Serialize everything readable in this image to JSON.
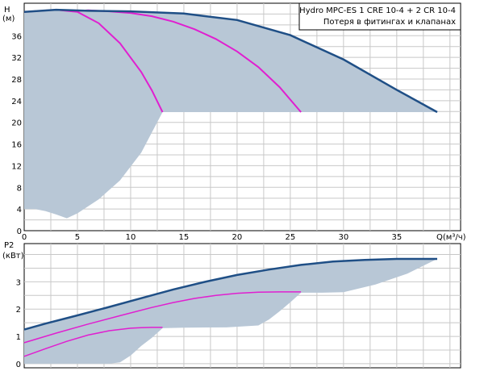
{
  "legend": {
    "title": "Hydro MPC-ES 1 CRE 10-4  +  2 CR 10-4",
    "subtitle": "Потеря в фитингах и клапанах"
  },
  "colors": {
    "band": "#b8c7d6",
    "main_curve": "#1f4f86",
    "sub_curve": "#e01fd0",
    "grid": "#c8c8c8",
    "frame": "#000000"
  },
  "chart_data": [
    {
      "type": "line",
      "name": "head",
      "xlabel": "Q(м³/ч)",
      "ylabel_line1": "H",
      "ylabel_line2": "(м)",
      "xlim": [
        0,
        41
      ],
      "ylim": [
        0,
        42
      ],
      "xticks": [
        0,
        5,
        10,
        15,
        20,
        25,
        30,
        35
      ],
      "yticks": [
        0,
        4,
        8,
        12,
        16,
        20,
        24,
        28,
        32,
        36
      ],
      "grid": true,
      "legend_position": "top-right",
      "series": [
        {
          "role": "max",
          "x": [
            0,
            3,
            6,
            10,
            15,
            20,
            25,
            30,
            35,
            38.8
          ],
          "y": [
            40.4,
            40.8,
            40.6,
            40.5,
            40.1,
            38.9,
            36.1,
            31.6,
            26.0,
            21.9
          ]
        },
        {
          "role": "one_pump",
          "x": [
            0,
            3,
            5,
            7,
            9,
            11,
            12,
            13
          ],
          "y": [
            40.4,
            40.8,
            40.4,
            38.3,
            34.6,
            29.3,
            25.9,
            21.9
          ]
        },
        {
          "role": "two_pumps",
          "x": [
            4.5,
            6,
            8,
            10,
            12,
            14,
            16,
            18,
            20,
            22,
            24,
            26
          ],
          "y": [
            40.5,
            40.7,
            40.5,
            40.2,
            39.6,
            38.6,
            37.2,
            35.4,
            33.1,
            30.2,
            26.5,
            21.9
          ]
        },
        {
          "role": "min_band",
          "x": [
            0,
            1,
            2,
            3,
            4,
            5,
            7,
            9,
            11,
            13
          ],
          "y": [
            4.0,
            4.0,
            3.6,
            3.0,
            2.3,
            3.2,
            5.8,
            9.3,
            14.4,
            21.9
          ]
        }
      ]
    },
    {
      "type": "line",
      "name": "power",
      "ylabel_line1": "P2",
      "ylabel_line2": "(кВт)",
      "xlim": [
        0,
        41
      ],
      "ylim": [
        -0.15,
        4.4
      ],
      "yticks": [
        0,
        1,
        2,
        3
      ],
      "grid": true,
      "series": [
        {
          "role": "max",
          "x": [
            0,
            2,
            5,
            8,
            11,
            14,
            17,
            20,
            23,
            26,
            29,
            32,
            35,
            38.8
          ],
          "y": [
            1.25,
            1.47,
            1.77,
            2.08,
            2.4,
            2.72,
            3.0,
            3.25,
            3.45,
            3.62,
            3.74,
            3.8,
            3.84,
            3.84
          ]
        },
        {
          "role": "two_pumps",
          "x": [
            0,
            3,
            6,
            9,
            12,
            14,
            16,
            18,
            20,
            22,
            24,
            26
          ],
          "y": [
            0.77,
            1.12,
            1.45,
            1.76,
            2.06,
            2.24,
            2.39,
            2.5,
            2.58,
            2.62,
            2.63,
            2.63
          ]
        },
        {
          "role": "one_pump",
          "x": [
            0,
            2,
            4,
            6,
            8,
            10,
            11,
            12,
            13
          ],
          "y": [
            0.27,
            0.55,
            0.82,
            1.05,
            1.21,
            1.3,
            1.32,
            1.33,
            1.33
          ]
        },
        {
          "role": "band_lower",
          "x": [
            0,
            1.5,
            3,
            5,
            6.5,
            8,
            9,
            10,
            11,
            12,
            13,
            15,
            19,
            22,
            23,
            24,
            25,
            26,
            28,
            30,
            33,
            36,
            38.8
          ],
          "y": [
            0.0,
            0.0,
            0.0,
            0.0,
            0.0,
            0.0,
            0.05,
            0.3,
            0.65,
            0.95,
            1.3,
            1.32,
            1.33,
            1.4,
            1.62,
            1.92,
            2.25,
            2.6,
            2.6,
            2.62,
            2.9,
            3.3,
            3.84
          ]
        }
      ]
    }
  ]
}
